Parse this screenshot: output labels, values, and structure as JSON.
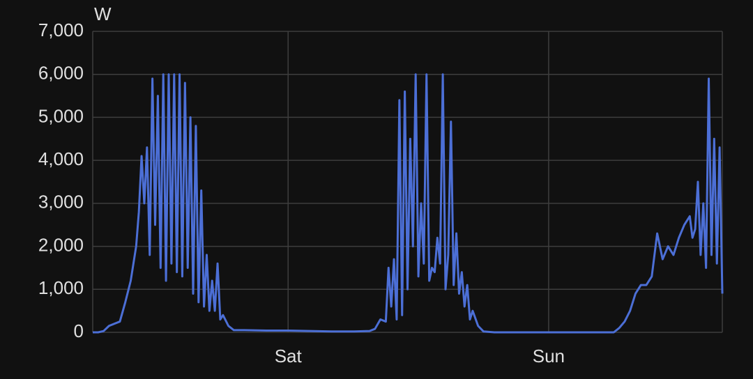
{
  "chart_data": {
    "type": "line",
    "y_label": "W",
    "color": "#4c6fd6",
    "grid": true,
    "xlim": [
      0,
      58
    ],
    "xticks": [
      {
        "value": 18,
        "label": "Sat"
      },
      {
        "value": 42,
        "label": "Sun"
      }
    ],
    "ylim": [
      0,
      7000
    ],
    "yticks": [
      {
        "value": 0,
        "label": "0"
      },
      {
        "value": 1000,
        "label": "1,000"
      },
      {
        "value": 2000,
        "label": "2,000"
      },
      {
        "value": 3000,
        "label": "3,000"
      },
      {
        "value": 4000,
        "label": "4,000"
      },
      {
        "value": 5000,
        "label": "5,000"
      },
      {
        "value": 6000,
        "label": "6,000"
      },
      {
        "value": 7000,
        "label": "7,000"
      }
    ],
    "x": [
      0,
      0.5,
      1,
      1.5,
      2,
      2.5,
      3,
      3.5,
      4,
      4.25,
      4.5,
      4.75,
      5,
      5.25,
      5.5,
      5.75,
      6,
      6.25,
      6.5,
      6.75,
      7,
      7.25,
      7.5,
      7.75,
      8,
      8.25,
      8.5,
      8.75,
      9,
      9.25,
      9.5,
      9.75,
      10,
      10.25,
      10.5,
      10.75,
      11,
      11.25,
      11.5,
      11.75,
      12,
      12.5,
      13,
      14,
      16,
      18,
      20,
      22,
      24,
      25.5,
      26,
      26.5,
      27,
      27.25,
      27.5,
      27.75,
      28,
      28.25,
      28.5,
      28.75,
      29,
      29.25,
      29.5,
      29.75,
      30,
      30.25,
      30.5,
      30.75,
      31,
      31.25,
      31.5,
      31.75,
      32,
      32.25,
      32.5,
      32.75,
      33,
      33.25,
      33.5,
      33.75,
      34,
      34.25,
      34.5,
      34.75,
      35,
      35.5,
      36,
      37,
      40,
      44,
      48,
      48.5,
      49,
      49.5,
      50,
      50.5,
      51,
      51.5,
      52,
      52.5,
      53,
      53.5,
      54,
      54.5,
      55,
      55.25,
      55.5,
      55.75,
      56,
      56.25,
      56.5,
      56.75,
      57,
      57.25,
      57.5,
      57.75,
      58
    ],
    "values": [
      0,
      0,
      30,
      150,
      200,
      250,
      700,
      1200,
      2000,
      2800,
      4100,
      3000,
      4300,
      1800,
      5900,
      2500,
      5500,
      1500,
      6000,
      1200,
      6000,
      1600,
      6000,
      1400,
      6000,
      1300,
      5800,
      1500,
      5000,
      900,
      4800,
      700,
      3300,
      600,
      1800,
      500,
      1200,
      500,
      1600,
      300,
      400,
      150,
      50,
      50,
      40,
      40,
      30,
      20,
      20,
      30,
      80,
      300,
      250,
      1500,
      600,
      1700,
      300,
      5400,
      400,
      5600,
      1000,
      4500,
      2000,
      6000,
      1300,
      3000,
      1600,
      6000,
      1200,
      1500,
      1400,
      2200,
      1600,
      6000,
      1000,
      1800,
      4900,
      1100,
      2300,
      900,
      1400,
      600,
      1100,
      300,
      500,
      150,
      20,
      0,
      0,
      0,
      0,
      100,
      250,
      500,
      900,
      1100,
      1100,
      1300,
      2300,
      1700,
      2000,
      1800,
      2200,
      2500,
      2700,
      2200,
      2400,
      3500,
      1800,
      3000,
      1500,
      5900,
      1800,
      4500,
      1600,
      4300,
      900
    ]
  }
}
